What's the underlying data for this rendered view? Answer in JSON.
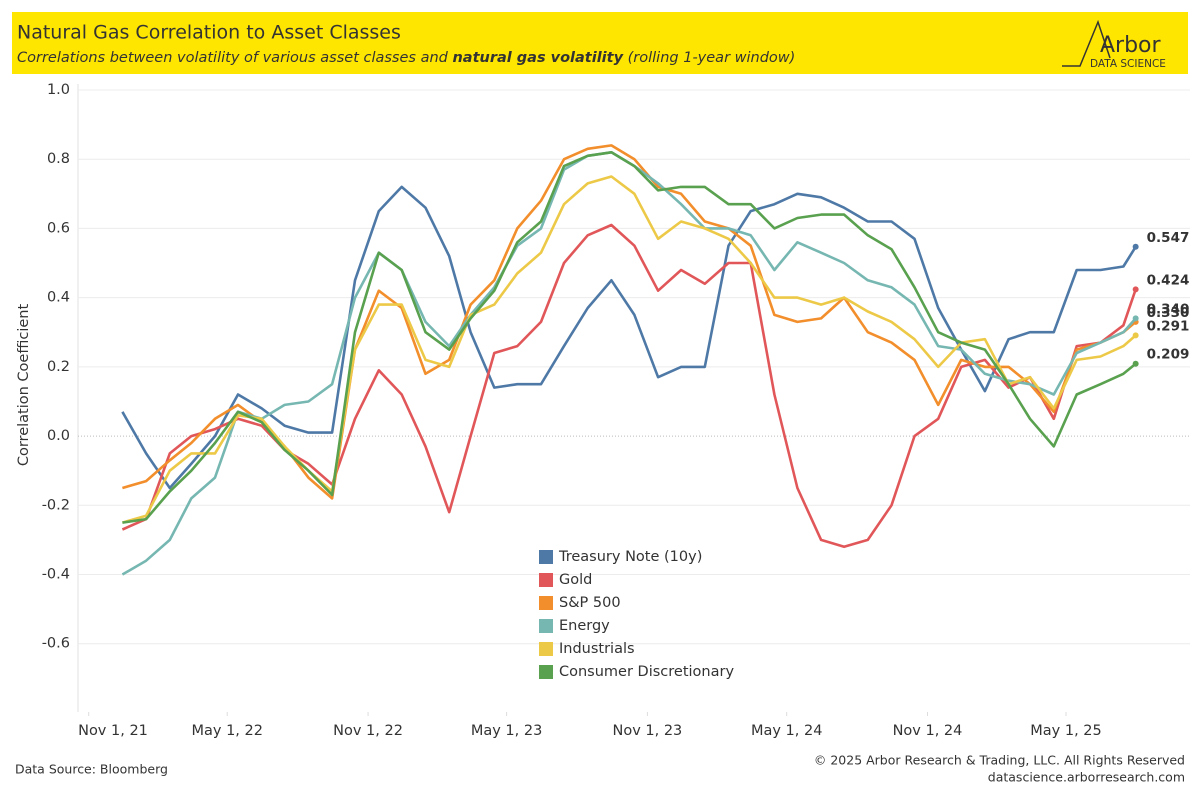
{
  "chart_data": {
    "type": "line",
    "title": "Natural Gas Correlation to Asset Classes",
    "subtitle": [
      "Correlations between volatility of various asset classes and ",
      "natural gas volatility",
      "  (rolling 1-year window)"
    ],
    "brand": "Arbor",
    "brand_sub": "DATA SCIENCE",
    "y_label": "Correlation Coefficient",
    "source": "Data Source: Bloomberg",
    "copyright": "© 2025 Arbor Research & Trading, LLC. All Rights Reserved",
    "website": "datascience.arborresearch.com",
    "grid": true,
    "legend": "center",
    "xlim": [
      "2021-10-18",
      "2025-10-10"
    ],
    "xticks": [
      {
        "value": "2021-11-01",
        "label": "Nov 1, 21"
      },
      {
        "value": "2022-05-01",
        "label": "May 1, 22"
      },
      {
        "value": "2022-11-01",
        "label": "Nov 1, 22"
      },
      {
        "value": "2023-05-01",
        "label": "May 1, 23"
      },
      {
        "value": "2023-11-01",
        "label": "Nov 1, 23"
      },
      {
        "value": "2024-05-01",
        "label": "May 1, 24"
      },
      {
        "value": "2024-11-01",
        "label": "Nov 1, 24"
      },
      {
        "value": "2025-05-01",
        "label": "May 1, 25"
      }
    ],
    "ylim": [
      -0.78,
      1.0
    ],
    "yticks": [
      {
        "value": 1.0,
        "label": "1.0"
      },
      0.8,
      0.6,
      0.4,
      0.2,
      {
        "value": 0,
        "label": "0.0"
      },
      -0.2,
      -0.4,
      -0.6
    ],
    "x": [
      "2021-12-15",
      "2022-01-15",
      "2022-02-15",
      "2022-03-15",
      "2022-04-15",
      "2022-05-15",
      "2022-06-15",
      "2022-07-15",
      "2022-08-15",
      "2022-09-15",
      "2022-10-15",
      "2022-11-15",
      "2022-12-15",
      "2023-01-15",
      "2023-02-15",
      "2023-03-15",
      "2023-04-15",
      "2023-05-15",
      "2023-06-15",
      "2023-07-15",
      "2023-08-15",
      "2023-09-15",
      "2023-10-15",
      "2023-11-15",
      "2023-12-15",
      "2024-01-15",
      "2024-02-15",
      "2024-03-15",
      "2024-04-15",
      "2024-05-15",
      "2024-06-15",
      "2024-07-15",
      "2024-08-15",
      "2024-09-15",
      "2024-10-15",
      "2024-11-15",
      "2024-12-15",
      "2025-01-15",
      "2025-02-15",
      "2025-03-15",
      "2025-04-15",
      "2025-05-15",
      "2025-06-15",
      "2025-07-15",
      "2025-07-31"
    ],
    "series": [
      {
        "name": "Treasury Note (10y)",
        "color": "#4e79a7",
        "values": [
          0.07,
          -0.05,
          -0.15,
          -0.08,
          0.0,
          0.12,
          0.08,
          0.03,
          0.01,
          0.01,
          0.45,
          0.65,
          0.72,
          0.66,
          0.52,
          0.3,
          0.14,
          0.15,
          0.15,
          0.26,
          0.37,
          0.45,
          0.35,
          0.17,
          0.2,
          0.2,
          0.55,
          0.65,
          0.67,
          0.7,
          0.69,
          0.66,
          0.62,
          0.62,
          0.57,
          0.37,
          0.25,
          0.13,
          0.28,
          0.3,
          0.3,
          0.48,
          0.48,
          0.49,
          0.547
        ],
        "value_labels": [
          null,
          null,
          null,
          null,
          null,
          null,
          null,
          null,
          null,
          null,
          null,
          null,
          null,
          null,
          null,
          null,
          null,
          null,
          null,
          null,
          null,
          null,
          null,
          null,
          null,
          null,
          null,
          null,
          null,
          null,
          null,
          null,
          null,
          null,
          null,
          null,
          null,
          null,
          null,
          null,
          null,
          null,
          null,
          null,
          "0.547"
        ]
      },
      {
        "name": "Gold",
        "color": "#e15759",
        "values": [
          -0.27,
          -0.24,
          -0.05,
          0.0,
          0.02,
          0.05,
          0.03,
          -0.04,
          -0.08,
          -0.14,
          0.05,
          0.19,
          0.12,
          -0.03,
          -0.22,
          0.0,
          0.24,
          0.26,
          0.33,
          0.5,
          0.58,
          0.61,
          0.55,
          0.42,
          0.48,
          0.44,
          0.5,
          0.5,
          0.12,
          -0.15,
          -0.3,
          -0.32,
          -0.3,
          -0.2,
          0.0,
          0.05,
          0.2,
          0.22,
          0.14,
          0.17,
          0.05,
          0.26,
          0.27,
          0.32,
          0.424
        ],
        "value_labels": [
          null,
          null,
          null,
          null,
          null,
          null,
          null,
          null,
          null,
          null,
          null,
          null,
          null,
          null,
          null,
          null,
          null,
          null,
          null,
          null,
          null,
          null,
          null,
          null,
          null,
          null,
          null,
          null,
          null,
          null,
          null,
          null,
          null,
          null,
          null,
          null,
          null,
          null,
          null,
          null,
          null,
          null,
          null,
          null,
          "0.424"
        ]
      },
      {
        "name": "S&P 500",
        "color": "#f28e2b",
        "values": [
          -0.15,
          -0.13,
          -0.07,
          -0.02,
          0.05,
          0.09,
          0.04,
          -0.03,
          -0.12,
          -0.18,
          0.25,
          0.42,
          0.37,
          0.18,
          0.22,
          0.38,
          0.45,
          0.6,
          0.68,
          0.8,
          0.83,
          0.84,
          0.8,
          0.72,
          0.7,
          0.62,
          0.6,
          0.55,
          0.35,
          0.33,
          0.34,
          0.4,
          0.3,
          0.27,
          0.22,
          0.09,
          0.22,
          0.2,
          0.2,
          0.15,
          0.07,
          0.25,
          0.27,
          0.3,
          0.33
        ],
        "value_labels": [
          null,
          null,
          null,
          null,
          null,
          null,
          null,
          null,
          null,
          null,
          null,
          null,
          null,
          null,
          null,
          null,
          null,
          null,
          null,
          null,
          null,
          null,
          null,
          null,
          null,
          null,
          null,
          null,
          null,
          null,
          null,
          null,
          null,
          null,
          null,
          null,
          null,
          null,
          null,
          null,
          null,
          null,
          null,
          null,
          "0.330"
        ]
      },
      {
        "name": "Energy",
        "color": "#76b7b2",
        "values": [
          -0.4,
          -0.36,
          -0.3,
          -0.18,
          -0.12,
          0.07,
          0.05,
          0.09,
          0.1,
          0.15,
          0.4,
          0.53,
          0.48,
          0.33,
          0.26,
          0.35,
          0.43,
          0.55,
          0.6,
          0.77,
          0.81,
          0.82,
          0.78,
          0.73,
          0.67,
          0.6,
          0.6,
          0.58,
          0.48,
          0.56,
          0.53,
          0.5,
          0.45,
          0.43,
          0.38,
          0.26,
          0.25,
          0.18,
          0.16,
          0.15,
          0.12,
          0.24,
          0.27,
          0.3,
          0.34
        ],
        "value_labels": [
          null,
          null,
          null,
          null,
          null,
          null,
          null,
          null,
          null,
          null,
          null,
          null,
          null,
          null,
          null,
          null,
          null,
          null,
          null,
          null,
          null,
          null,
          null,
          null,
          null,
          null,
          null,
          null,
          null,
          null,
          null,
          null,
          null,
          null,
          null,
          null,
          null,
          null,
          null,
          null,
          null,
          null,
          null,
          null,
          "0.340"
        ]
      },
      {
        "name": "Industrials",
        "color": "#edc948",
        "values": [
          -0.25,
          -0.23,
          -0.1,
          -0.05,
          -0.05,
          0.06,
          0.05,
          -0.03,
          -0.1,
          -0.16,
          0.25,
          0.38,
          0.38,
          0.22,
          0.2,
          0.35,
          0.38,
          0.47,
          0.53,
          0.67,
          0.73,
          0.75,
          0.7,
          0.57,
          0.62,
          0.6,
          0.57,
          0.5,
          0.4,
          0.4,
          0.38,
          0.4,
          0.36,
          0.33,
          0.28,
          0.2,
          0.27,
          0.28,
          0.15,
          0.17,
          0.08,
          0.22,
          0.23,
          0.26,
          0.291
        ],
        "value_labels": [
          null,
          null,
          null,
          null,
          null,
          null,
          null,
          null,
          null,
          null,
          null,
          null,
          null,
          null,
          null,
          null,
          null,
          null,
          null,
          null,
          null,
          null,
          null,
          null,
          null,
          null,
          null,
          null,
          null,
          null,
          null,
          null,
          null,
          null,
          null,
          null,
          null,
          null,
          null,
          null,
          null,
          null,
          null,
          null,
          "0.291"
        ]
      },
      {
        "name": "Consumer Discretionary",
        "color": "#59a14f",
        "values": [
          -0.25,
          -0.24,
          -0.16,
          -0.1,
          -0.02,
          0.07,
          0.04,
          -0.04,
          -0.1,
          -0.17,
          0.3,
          0.53,
          0.48,
          0.3,
          0.25,
          0.34,
          0.42,
          0.56,
          0.62,
          0.78,
          0.81,
          0.82,
          0.78,
          0.71,
          0.72,
          0.72,
          0.67,
          0.67,
          0.6,
          0.63,
          0.64,
          0.64,
          0.58,
          0.54,
          0.43,
          0.3,
          0.27,
          0.25,
          0.15,
          0.05,
          -0.03,
          0.12,
          0.15,
          0.18,
          0.209
        ],
        "value_labels": [
          null,
          null,
          null,
          null,
          null,
          null,
          null,
          null,
          null,
          null,
          null,
          null,
          null,
          null,
          null,
          null,
          null,
          null,
          null,
          null,
          null,
          null,
          null,
          null,
          null,
          null,
          null,
          null,
          null,
          null,
          null,
          null,
          null,
          null,
          null,
          null,
          null,
          null,
          null,
          null,
          null,
          null,
          null,
          null,
          "0.209"
        ]
      }
    ]
  }
}
